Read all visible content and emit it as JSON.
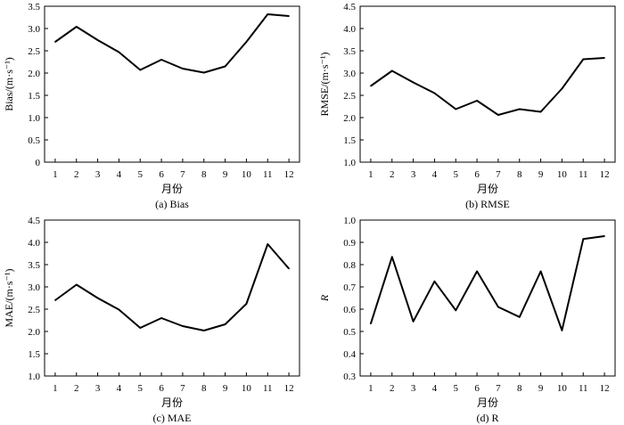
{
  "chart_data": [
    {
      "type": "line",
      "caption": "(a) Bias",
      "xlabel": "月份",
      "ylabel": "Bias/(m·s⁻¹)",
      "x": [
        1,
        2,
        3,
        4,
        5,
        6,
        7,
        8,
        9,
        10,
        11,
        12
      ],
      "series": [
        {
          "values": [
            2.7,
            3.04,
            2.74,
            2.47,
            2.07,
            2.3,
            2.1,
            2.01,
            2.15,
            2.7,
            3.32,
            3.28
          ]
        }
      ],
      "ylim": [
        0,
        3.5
      ],
      "yticks": [
        "0",
        "0.5",
        "1.0",
        "1.5",
        "2.0",
        "2.5",
        "3.0",
        "3.5"
      ],
      "grid": false
    },
    {
      "type": "line",
      "caption": "(b) RMSE",
      "xlabel": "月份",
      "ylabel": "RMSE/(m·s⁻¹)",
      "x": [
        1,
        2,
        3,
        4,
        5,
        6,
        7,
        8,
        9,
        10,
        11,
        12
      ],
      "series": [
        {
          "values": [
            2.71,
            3.05,
            2.79,
            2.55,
            2.19,
            2.38,
            2.06,
            2.19,
            2.13,
            2.65,
            3.31,
            3.34
          ]
        }
      ],
      "ylim": [
        1.0,
        4.5
      ],
      "yticks": [
        "1.0",
        "1.5",
        "2.0",
        "2.5",
        "3.0",
        "3.5",
        "4.0",
        "4.5"
      ],
      "grid": false
    },
    {
      "type": "line",
      "caption": "(c) MAE",
      "xlabel": "月份",
      "ylabel": "MAE/(m·s⁻¹)",
      "x": [
        1,
        2,
        3,
        4,
        5,
        6,
        7,
        8,
        9,
        10,
        11,
        12
      ],
      "series": [
        {
          "values": [
            2.7,
            3.05,
            2.75,
            2.49,
            2.08,
            2.3,
            2.12,
            2.02,
            2.16,
            2.62,
            3.96,
            3.41
          ]
        }
      ],
      "ylim": [
        1.0,
        4.5
      ],
      "yticks": [
        "1.0",
        "1.5",
        "2.0",
        "2.5",
        "3.0",
        "3.5",
        "4.0",
        "4.5"
      ],
      "grid": false
    },
    {
      "type": "line",
      "caption": "(d) R",
      "xlabel": "月份",
      "ylabel": "R",
      "x": [
        1,
        2,
        3,
        4,
        5,
        6,
        7,
        8,
        9,
        10,
        11,
        12
      ],
      "series": [
        {
          "values": [
            0.535,
            0.835,
            0.545,
            0.725,
            0.595,
            0.77,
            0.61,
            0.565,
            0.77,
            0.505,
            0.915,
            0.928
          ]
        }
      ],
      "ylim": [
        0.3,
        1.0
      ],
      "yticks": [
        "0.3",
        "0.4",
        "0.5",
        "0.6",
        "0.7",
        "0.8",
        "0.9",
        "1.0"
      ],
      "grid": false
    }
  ]
}
